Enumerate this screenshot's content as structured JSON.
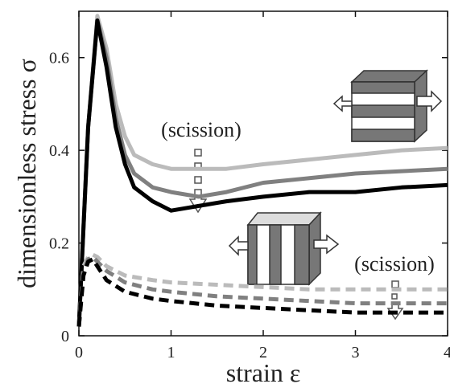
{
  "chart_data": {
    "type": "line",
    "xlabel": "strain ε",
    "ylabel": "dimensionless stress σ",
    "xlim": [
      0,
      4
    ],
    "ylim": [
      0,
      0.7
    ],
    "xticks": [
      0,
      1,
      2,
      3,
      4
    ],
    "yticks": [
      0,
      0.2,
      0.4,
      0.6
    ],
    "annotations": [
      "(scission)",
      "(scission)"
    ],
    "series": [
      {
        "color": "#bbbbbb",
        "dashed": false,
        "x": [
          0,
          0.1,
          0.2,
          0.3,
          0.4,
          0.5,
          0.6,
          0.8,
          1.0,
          1.3,
          1.6,
          2,
          2.5,
          3,
          3.5,
          4
        ],
        "values": [
          0.02,
          0.45,
          0.69,
          0.62,
          0.5,
          0.43,
          0.39,
          0.37,
          0.36,
          0.36,
          0.36,
          0.37,
          0.38,
          0.39,
          0.4,
          0.405
        ]
      },
      {
        "color": "#808080",
        "dashed": false,
        "x": [
          0,
          0.1,
          0.2,
          0.3,
          0.4,
          0.5,
          0.6,
          0.8,
          1.0,
          1.3,
          1.6,
          2,
          2.5,
          3,
          3.5,
          4
        ],
        "values": [
          0.02,
          0.45,
          0.68,
          0.6,
          0.47,
          0.39,
          0.35,
          0.32,
          0.31,
          0.3,
          0.31,
          0.33,
          0.34,
          0.35,
          0.355,
          0.36
        ]
      },
      {
        "color": "#000000",
        "dashed": false,
        "x": [
          0,
          0.1,
          0.2,
          0.3,
          0.4,
          0.5,
          0.6,
          0.8,
          1.0,
          1.3,
          1.6,
          2,
          2.5,
          3,
          3.5,
          4
        ],
        "values": [
          0.02,
          0.45,
          0.68,
          0.58,
          0.45,
          0.37,
          0.32,
          0.29,
          0.27,
          0.28,
          0.29,
          0.3,
          0.31,
          0.31,
          0.32,
          0.325
        ]
      },
      {
        "color": "#bbbbbb",
        "dashed": true,
        "x": [
          0,
          0.05,
          0.1,
          0.15,
          0.2,
          0.3,
          0.5,
          0.8,
          1.0,
          1.5,
          2,
          2.5,
          3,
          3.5,
          4
        ],
        "values": [
          0.02,
          0.15,
          0.17,
          0.175,
          0.17,
          0.15,
          0.13,
          0.12,
          0.115,
          0.11,
          0.105,
          0.1,
          0.1,
          0.1,
          0.1
        ]
      },
      {
        "color": "#808080",
        "dashed": true,
        "x": [
          0,
          0.05,
          0.1,
          0.15,
          0.2,
          0.3,
          0.5,
          0.8,
          1.0,
          1.5,
          2,
          2.5,
          3,
          3.5,
          4
        ],
        "values": [
          0.02,
          0.14,
          0.165,
          0.17,
          0.16,
          0.14,
          0.115,
          0.1,
          0.095,
          0.085,
          0.08,
          0.075,
          0.07,
          0.07,
          0.07
        ]
      },
      {
        "color": "#000000",
        "dashed": true,
        "x": [
          0,
          0.05,
          0.1,
          0.15,
          0.2,
          0.3,
          0.5,
          0.8,
          1.0,
          1.5,
          2,
          2.5,
          3,
          3.5,
          4
        ],
        "values": [
          0.02,
          0.13,
          0.16,
          0.165,
          0.15,
          0.12,
          0.095,
          0.08,
          0.075,
          0.065,
          0.06,
          0.055,
          0.05,
          0.05,
          0.05
        ]
      }
    ]
  }
}
